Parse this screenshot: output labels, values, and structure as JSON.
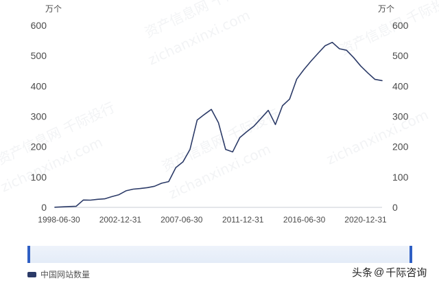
{
  "chart_data": {
    "type": "line",
    "y_unit_left": "万个",
    "y_unit_right": "万个",
    "ylim": [
      0,
      600
    ],
    "y_ticks": [
      0,
      100,
      200,
      300,
      400,
      500,
      600
    ],
    "x_tick_labels": [
      "1998-06-30",
      "2002-12-31",
      "2007-06-30",
      "2011-12-31",
      "2016-06-30",
      "2020-12-31"
    ],
    "series": [
      {
        "name": "中国网站数量",
        "color": "#2b3a67",
        "values": [
          0.5,
          1.5,
          2.7,
          3.7,
          24.3,
          23.7,
          26.5,
          28.1,
          35.3,
          41.7,
          54.6,
          60.0,
          62.0,
          65.0,
          69.4,
          79.5,
          85.0,
          131.0,
          150.0,
          191.0,
          287.8,
          306.0,
          323.0,
          279.0,
          191.0,
          183.0,
          230.0,
          250.0,
          268.0,
          294.0,
          320.0,
          273.0,
          335.0,
          357.0,
          423.0,
          454.0,
          482.0,
          508.0,
          533.0,
          544.0,
          523.0,
          518.0,
          494.0,
          466.0,
          443.0,
          422.0,
          418.0
        ]
      }
    ],
    "grid": false,
    "legend_position": "bottom-left"
  },
  "legend": {
    "label": "中国网站数量"
  },
  "brand": {
    "prefix": "头条",
    "at": "@",
    "name": "千际咨询"
  },
  "watermark": {
    "text": "资产信息网 千际投行",
    "url": "zichanxinxi.com"
  }
}
